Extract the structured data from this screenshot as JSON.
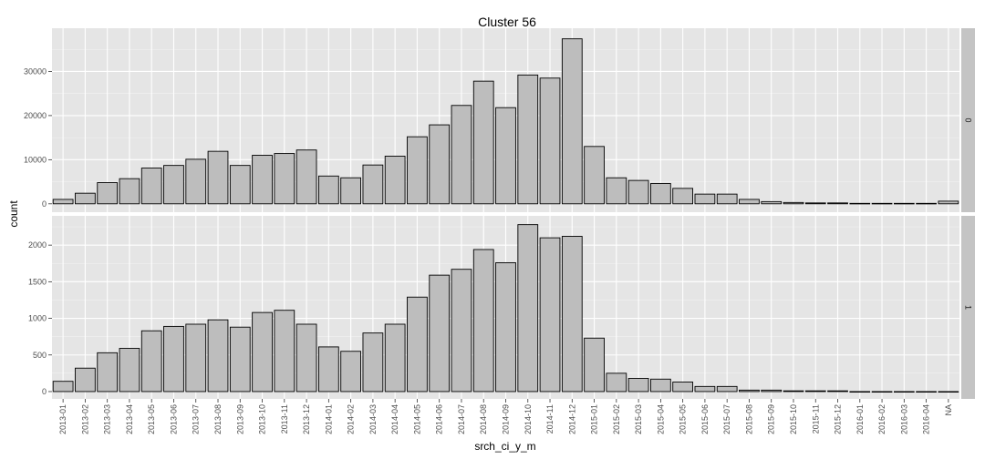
{
  "chart_data": {
    "type": "bar",
    "title": "Cluster  56",
    "xlabel": "srch_ci_y_m",
    "ylabel": "count",
    "grid": true,
    "legend": "none",
    "colors": {
      "panel_bg": "#e5e5e5",
      "grid_major": "#ffffff",
      "grid_minor": "#f2f2f2",
      "bar_fill": "#bdbdbd",
      "bar_stroke": "#000000",
      "strip_bg": "#c4c4c4",
      "tick_text": "#4d4d4d"
    },
    "categories": [
      "2013-01",
      "2013-02",
      "2013-03",
      "2013-04",
      "2013-05",
      "2013-06",
      "2013-07",
      "2013-08",
      "2013-09",
      "2013-10",
      "2013-11",
      "2013-12",
      "2014-01",
      "2014-02",
      "2014-03",
      "2014-04",
      "2014-05",
      "2014-06",
      "2014-07",
      "2014-08",
      "2014-09",
      "2014-10",
      "2014-11",
      "2014-12",
      "2015-01",
      "2015-02",
      "2015-03",
      "2015-04",
      "2015-05",
      "2015-06",
      "2015-07",
      "2015-08",
      "2015-09",
      "2015-10",
      "2015-11",
      "2015-12",
      "2016-01",
      "2016-02",
      "2016-03",
      "2016-04",
      "NA"
    ],
    "panels": [
      {
        "facet_label": "0",
        "ylim": [
          -1900,
          39800
        ],
        "yticks": [
          0,
          10000,
          20000,
          30000
        ],
        "values": [
          1000,
          2400,
          4800,
          5700,
          8100,
          8700,
          10100,
          11900,
          8700,
          11000,
          11400,
          12200,
          6300,
          5900,
          8800,
          10800,
          15200,
          17900,
          22300,
          27800,
          21800,
          29200,
          28500,
          37400,
          13000,
          5900,
          5300,
          4600,
          3500,
          2200,
          2200,
          1000,
          500,
          300,
          200,
          200,
          100,
          100,
          100,
          100,
          600
        ]
      },
      {
        "facet_label": "1",
        "ylim": [
          -100,
          2400
        ],
        "yticks": [
          0,
          500,
          1000,
          1500,
          2000
        ],
        "values": [
          140,
          320,
          530,
          590,
          830,
          890,
          920,
          980,
          880,
          1080,
          1110,
          920,
          610,
          550,
          800,
          920,
          1290,
          1590,
          1670,
          1940,
          1760,
          2280,
          2100,
          2120,
          730,
          250,
          180,
          170,
          130,
          70,
          70,
          20,
          20,
          10,
          10,
          10,
          0,
          0,
          0,
          0,
          0
        ]
      }
    ]
  }
}
